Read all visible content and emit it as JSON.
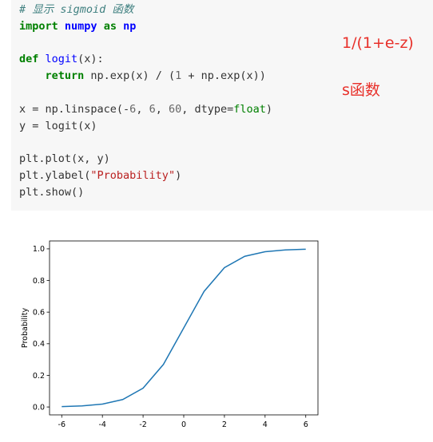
{
  "code_cell": {
    "lines": [
      [
        {
          "t": "# 显示 sigmoid 函数",
          "c": "cm"
        }
      ],
      [
        {
          "t": "import",
          "c": "kw"
        },
        {
          "t": " "
        },
        {
          "t": "numpy",
          "c": "nm"
        },
        {
          "t": " "
        },
        {
          "t": "as",
          "c": "kw"
        },
        {
          "t": " "
        },
        {
          "t": "np",
          "c": "nm"
        }
      ],
      [],
      [
        {
          "t": "def",
          "c": "kw"
        },
        {
          "t": " "
        },
        {
          "t": "logit",
          "c": "fn"
        },
        {
          "t": "(x):"
        }
      ],
      [
        {
          "t": "    "
        },
        {
          "t": "return",
          "c": "kw"
        },
        {
          "t": " np.exp(x) / ("
        },
        {
          "t": "1",
          "c": "num"
        },
        {
          "t": " + np.exp(x))"
        }
      ],
      [],
      [
        {
          "t": "x = np.linspace(-"
        },
        {
          "t": "6",
          "c": "num"
        },
        {
          "t": ", "
        },
        {
          "t": "6",
          "c": "num"
        },
        {
          "t": ", "
        },
        {
          "t": "60",
          "c": "num"
        },
        {
          "t": ", dtype="
        },
        {
          "t": "float",
          "c": "bi"
        },
        {
          "t": ")"
        }
      ],
      [
        {
          "t": "y = logit(x)"
        }
      ],
      [],
      [
        {
          "t": "plt.plot(x, y)"
        }
      ],
      [
        {
          "t": "plt.ylabel("
        },
        {
          "t": "\"Probability\"",
          "c": "str"
        },
        {
          "t": ")"
        }
      ],
      [
        {
          "t": "plt.show()"
        }
      ]
    ]
  },
  "annotations": {
    "formula": "1/(1+e-z)",
    "note": "s函数"
  },
  "chart_data": {
    "type": "line",
    "title": "",
    "xlabel": "",
    "ylabel": "Probability",
    "xlim": [
      -6.6,
      6.6
    ],
    "ylim": [
      -0.05,
      1.05
    ],
    "x_ticks": [
      -6,
      -4,
      -2,
      0,
      2,
      4,
      6
    ],
    "y_ticks": [
      0.0,
      0.2,
      0.4,
      0.6,
      0.8,
      1.0
    ],
    "x_tick_labels": [
      "-6",
      "-4",
      "-2",
      "0",
      "2",
      "4",
      "6"
    ],
    "y_tick_labels": [
      "0.0",
      "0.2",
      "0.4",
      "0.6",
      "0.8",
      "1.0"
    ],
    "series": [
      {
        "color": "#1f77b4",
        "x": [
          -6,
          -5,
          -4,
          -3,
          -2,
          -1,
          0,
          1,
          2,
          3,
          4,
          5,
          6
        ],
        "y": [
          0.0025,
          0.0067,
          0.018,
          0.047,
          0.119,
          0.269,
          0.5,
          0.731,
          0.881,
          0.953,
          0.982,
          0.993,
          0.9975
        ]
      }
    ],
    "grid": false
  }
}
